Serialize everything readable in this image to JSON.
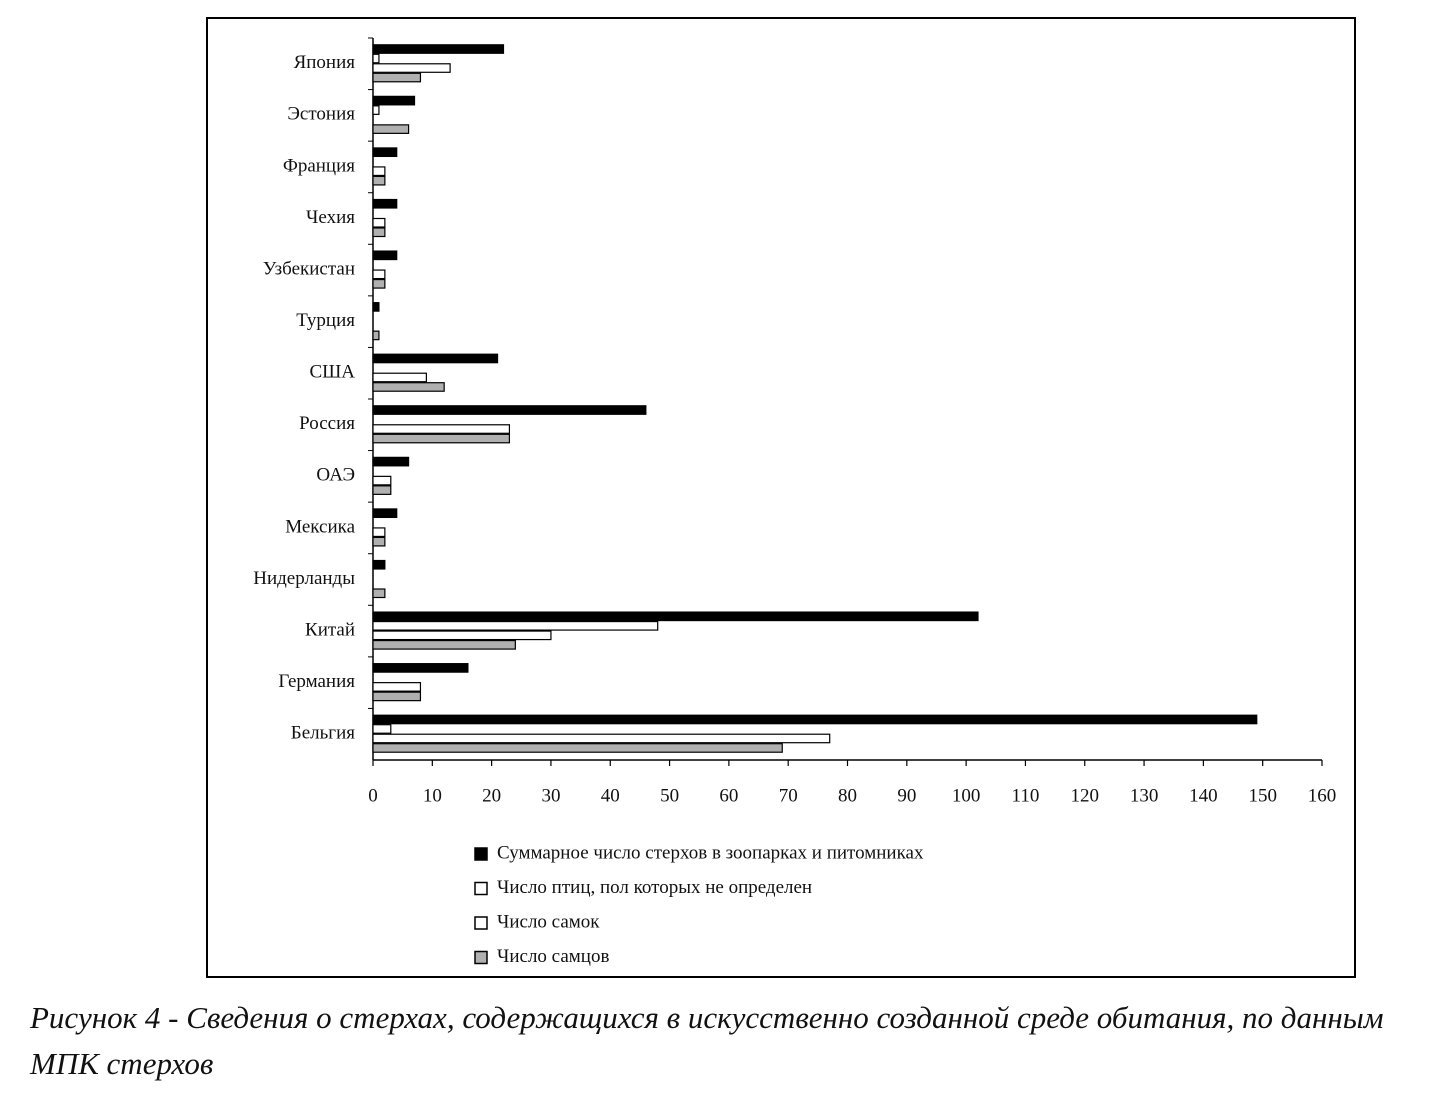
{
  "chart_data": {
    "type": "bar",
    "orientation": "horizontal",
    "categories": [
      "Япония",
      "Эстония",
      "Франция",
      "Чехия",
      "Узбекистан",
      "Турция",
      "США",
      "Россия",
      "ОАЭ",
      "Мексика",
      "Нидерланды",
      "Китай",
      "Германия",
      "Бельгия"
    ],
    "series": [
      {
        "name": "Суммарное число стерхов в зоопарках и питомниках",
        "color": "#000000",
        "values": [
          22,
          7,
          4,
          4,
          4,
          1,
          21,
          46,
          6,
          4,
          2,
          102,
          16,
          149
        ]
      },
      {
        "name": "Число птиц, пол которых не определен",
        "color": "#ffffff",
        "values": [
          1,
          1,
          0,
          0,
          0,
          0,
          0,
          0,
          0,
          0,
          0,
          48,
          0,
          3
        ]
      },
      {
        "name": "Число самок",
        "color": "#ffffff",
        "values": [
          13,
          0,
          2,
          2,
          2,
          0,
          9,
          23,
          3,
          2,
          0,
          30,
          8,
          77
        ]
      },
      {
        "name": "Число самцов",
        "color": "#b0b0b0",
        "values": [
          8,
          6,
          2,
          2,
          2,
          1,
          12,
          23,
          3,
          2,
          2,
          24,
          8,
          69
        ]
      }
    ],
    "xlim": [
      0,
      160
    ],
    "xticks": [
      0,
      10,
      20,
      30,
      40,
      50,
      60,
      70,
      80,
      90,
      100,
      110,
      120,
      130,
      140,
      150,
      160
    ],
    "caption": "Рисунок 4 - Сведения о стерхах, содержащихся в искусственно созданной среде обитания, по данным МПК стерхов"
  }
}
